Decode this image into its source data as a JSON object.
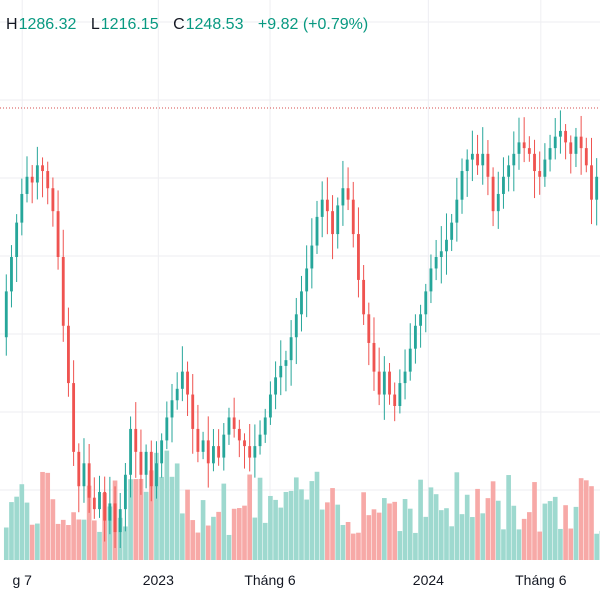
{
  "legend": {
    "high_label": "H",
    "high_value": "1286.32",
    "low_label": "L",
    "low_value": "1216.15",
    "close_label": "C",
    "close_value": "1248.53",
    "change": "+9.82 (+0.79%)"
  },
  "colors": {
    "up": "#26a69a",
    "down": "#ef5350",
    "volume_up": "#9ed9cf",
    "volume_down": "#f7a9a7",
    "grid": "#eeeef2",
    "reference_line": "#d44d4d",
    "axis_text": "#131722",
    "legend_value": "#089981"
  },
  "chart_data": {
    "type": "candlestick",
    "x_tick_labels": [
      "g 7",
      "2023",
      "Tháng 6",
      "2024",
      "Tháng 6"
    ],
    "x_tick_dates": [
      "2022-07",
      "2023-01",
      "2023-06",
      "2024-01",
      "2024-06"
    ],
    "visible_range": [
      "2022-06-01",
      "2024-08-20"
    ],
    "price_range_estimate": [
      900,
      1290
    ],
    "reference_line_price": 1290,
    "reference_line_style": "dotted",
    "grid": true,
    "volume_panel": true,
    "series": [
      {
        "name": "price",
        "note": "closes per ~weekly bar, estimated",
        "points": [
          [
            "2022-06-06",
            1090,
            1130
          ],
          [
            "2022-06-13",
            1130,
            1160
          ],
          [
            "2022-06-20",
            1160,
            1190
          ],
          [
            "2022-06-27",
            1190,
            1215
          ],
          [
            "2022-07-04",
            1215,
            1230
          ],
          [
            "2022-07-11",
            1230,
            1225
          ],
          [
            "2022-07-18",
            1225,
            1240
          ],
          [
            "2022-07-25",
            1240,
            1235
          ],
          [
            "2022-08-01",
            1235,
            1220
          ],
          [
            "2022-08-08",
            1220,
            1200
          ],
          [
            "2022-08-15",
            1200,
            1160
          ],
          [
            "2022-08-22",
            1160,
            1100
          ],
          [
            "2022-08-29",
            1100,
            1050
          ],
          [
            "2022-09-05",
            1050,
            990
          ],
          [
            "2022-09-12",
            990,
            960
          ],
          [
            "2022-09-19",
            960,
            980
          ],
          [
            "2022-09-26",
            980,
            950
          ],
          [
            "2022-10-03",
            950,
            940
          ],
          [
            "2022-10-10",
            940,
            955
          ],
          [
            "2022-10-17",
            955,
            930
          ],
          [
            "2022-10-24",
            930,
            945
          ],
          [
            "2022-10-31",
            945,
            920
          ],
          [
            "2022-11-07",
            920,
            940
          ],
          [
            "2022-11-14",
            940,
            970
          ],
          [
            "2022-11-21",
            970,
            1010
          ],
          [
            "2022-11-28",
            1010,
            990
          ],
          [
            "2022-12-05",
            990,
            970
          ],
          [
            "2022-12-12",
            970,
            990
          ],
          [
            "2022-12-19",
            990,
            960
          ],
          [
            "2022-12-26",
            960,
            980
          ],
          [
            "2023-01-02",
            980,
            1000
          ],
          [
            "2023-01-09",
            1000,
            1020
          ],
          [
            "2023-01-16",
            1020,
            1035
          ],
          [
            "2023-01-23",
            1035,
            1045
          ],
          [
            "2023-01-30",
            1045,
            1060
          ],
          [
            "2023-02-06",
            1060,
            1040
          ],
          [
            "2023-02-13",
            1040,
            1010
          ],
          [
            "2023-02-20",
            1010,
            990
          ],
          [
            "2023-02-27",
            990,
            1000
          ],
          [
            "2023-03-06",
            1000,
            980
          ],
          [
            "2023-03-13",
            980,
            995
          ],
          [
            "2023-03-20",
            995,
            985
          ],
          [
            "2023-03-27",
            985,
            1005
          ],
          [
            "2023-04-03",
            1005,
            1020
          ],
          [
            "2023-04-10",
            1020,
            1010
          ],
          [
            "2023-04-17",
            1010,
            1000
          ],
          [
            "2023-04-24",
            1000,
            995
          ],
          [
            "2023-05-01",
            995,
            985
          ],
          [
            "2023-05-08",
            985,
            995
          ],
          [
            "2023-05-15",
            995,
            1005
          ],
          [
            "2023-05-22",
            1005,
            1020
          ],
          [
            "2023-05-29",
            1020,
            1040
          ],
          [
            "2023-06-05",
            1040,
            1055
          ],
          [
            "2023-06-12",
            1055,
            1065
          ],
          [
            "2023-06-19",
            1065,
            1070
          ],
          [
            "2023-06-26",
            1070,
            1090
          ],
          [
            "2023-07-03",
            1090,
            1110
          ],
          [
            "2023-07-10",
            1110,
            1130
          ],
          [
            "2023-07-17",
            1130,
            1150
          ],
          [
            "2023-07-24",
            1150,
            1170
          ],
          [
            "2023-07-31",
            1170,
            1195
          ],
          [
            "2023-08-07",
            1195,
            1210
          ],
          [
            "2023-08-14",
            1210,
            1200
          ],
          [
            "2023-08-21",
            1200,
            1180
          ],
          [
            "2023-08-28",
            1180,
            1205
          ],
          [
            "2023-09-04",
            1205,
            1220
          ],
          [
            "2023-09-11",
            1220,
            1210
          ],
          [
            "2023-09-18",
            1210,
            1180
          ],
          [
            "2023-09-25",
            1180,
            1140
          ],
          [
            "2023-10-02",
            1140,
            1110
          ],
          [
            "2023-10-09",
            1110,
            1085
          ],
          [
            "2023-10-16",
            1085,
            1060
          ],
          [
            "2023-10-23",
            1060,
            1040
          ],
          [
            "2023-10-30",
            1040,
            1060
          ],
          [
            "2023-11-06",
            1060,
            1040
          ],
          [
            "2023-11-13",
            1040,
            1030
          ],
          [
            "2023-11-20",
            1030,
            1050
          ],
          [
            "2023-11-27",
            1050,
            1060
          ],
          [
            "2023-12-04",
            1060,
            1080
          ],
          [
            "2023-12-11",
            1080,
            1100
          ],
          [
            "2023-12-18",
            1100,
            1110
          ],
          [
            "2023-12-25",
            1110,
            1130
          ],
          [
            "2024-01-01",
            1130,
            1150
          ],
          [
            "2024-01-08",
            1150,
            1160
          ],
          [
            "2024-01-15",
            1160,
            1165
          ],
          [
            "2024-01-22",
            1165,
            1175
          ],
          [
            "2024-01-29",
            1175,
            1190
          ],
          [
            "2024-02-05",
            1190,
            1210
          ],
          [
            "2024-02-12",
            1210,
            1235
          ],
          [
            "2024-02-19",
            1235,
            1245
          ],
          [
            "2024-02-26",
            1245,
            1250
          ],
          [
            "2024-03-04",
            1250,
            1240
          ],
          [
            "2024-03-11",
            1240,
            1250
          ],
          [
            "2024-03-18",
            1250,
            1230
          ],
          [
            "2024-03-25",
            1230,
            1200
          ],
          [
            "2024-04-01",
            1200,
            1215
          ],
          [
            "2024-04-08",
            1215,
            1230
          ],
          [
            "2024-04-15",
            1230,
            1240
          ],
          [
            "2024-04-22",
            1240,
            1250
          ],
          [
            "2024-04-29",
            1250,
            1260
          ],
          [
            "2024-05-06",
            1260,
            1255
          ],
          [
            "2024-05-13",
            1255,
            1250
          ],
          [
            "2024-05-20",
            1250,
            1235
          ],
          [
            "2024-05-27",
            1235,
            1230
          ],
          [
            "2024-06-03",
            1230,
            1245
          ],
          [
            "2024-06-10",
            1245,
            1255
          ],
          [
            "2024-06-17",
            1255,
            1265
          ],
          [
            "2024-06-24",
            1265,
            1270
          ],
          [
            "2024-07-01",
            1270,
            1260
          ],
          [
            "2024-07-08",
            1260,
            1250
          ],
          [
            "2024-07-15",
            1250,
            1265
          ],
          [
            "2024-07-22",
            1265,
            1255
          ],
          [
            "2024-07-29",
            1255,
            1240
          ],
          [
            "2024-08-05",
            1240,
            1210
          ],
          [
            "2024-08-12",
            1210,
            1230
          ],
          [
            "2024-08-19",
            1230,
            1250
          ]
        ]
      }
    ]
  }
}
